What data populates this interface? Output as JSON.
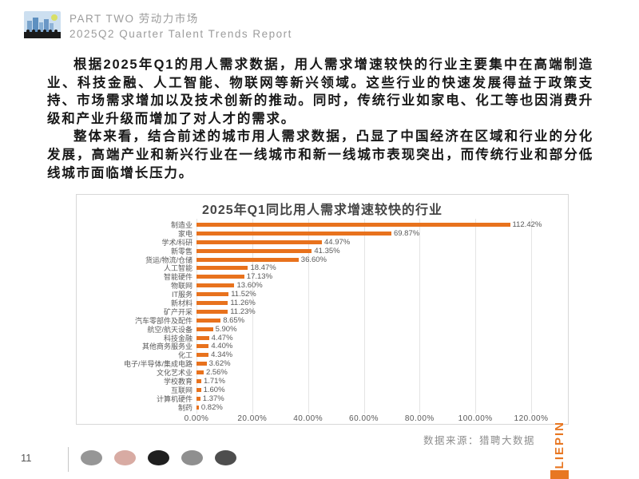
{
  "header": {
    "line1": "PART TWO 劳动力市场",
    "line2": "2025Q2 Quarter Talent Trends Report",
    "icon": "city-skyline-people-logo"
  },
  "paragraphs": [
    "根据2025年Q1的用人需求数据，用人需求增速较快的行业主要集中在高端制造业、科技金融、人工智能、物联网等新兴领域。这些行业的快速发展得益于政策支持、市场需求增加以及技术创新的推动。同时，传统行业如家电、化工等也因消费升级和产业升级而增加了对人才的需求。",
    "整体来看，结合前述的城市用人需求数据，凸显了中国经济在区域和行业的分化发展，高端产业和新兴行业在一线城市和新一线城市表现突出，而传统行业和部分低线城市面临增长压力。"
  ],
  "chart_data": {
    "type": "bar",
    "orientation": "horizontal",
    "title": "2025年Q1同比用人需求增速较快的行业",
    "categories": [
      "制造业",
      "家电",
      "学术/科研",
      "新零售",
      "货运/物流/仓储",
      "人工智能",
      "智能硬件",
      "物联网",
      "IT服务",
      "新材料",
      "矿产开采",
      "汽车零部件及配件",
      "航空/航天设备",
      "科技金融",
      "其他商务服务业",
      "化工",
      "电子/半导体/集成电路",
      "文化艺术业",
      "学校教育",
      "互联网",
      "计算机硬件",
      "制药"
    ],
    "values": [
      112.42,
      69.87,
      44.97,
      41.35,
      36.6,
      18.47,
      17.13,
      13.6,
      11.52,
      11.26,
      11.23,
      8.65,
      5.9,
      4.47,
      4.4,
      4.34,
      3.62,
      2.56,
      1.71,
      1.6,
      1.37,
      0.82
    ],
    "value_labels": [
      "112.42%",
      "69.87%",
      "44.97%",
      "41.35%",
      "36.60%",
      "18.47%",
      "17.13%",
      "13.60%",
      "11.52%",
      "11.26%",
      "11.23%",
      "8.65%",
      "5.90%",
      "4.47%",
      "4.40%",
      "4.34%",
      "3.62%",
      "2.56%",
      "1.71%",
      "1.60%",
      "1.37%",
      "0.82%"
    ],
    "x_ticks": [
      "0.00%",
      "20.00%",
      "40.00%",
      "60.00%",
      "80.00%",
      "100.00%",
      "120.00%"
    ],
    "x_tick_values": [
      0,
      20,
      40,
      60,
      80,
      100,
      120
    ],
    "xlim": [
      0,
      120
    ],
    "grid": true,
    "bar_color": "#E8721D",
    "legend": null
  },
  "footer": {
    "source": "数据来源：猎聘大数据",
    "page_number": "11",
    "logo_text": "LIEPIN",
    "logo_color": "#E87722",
    "logos": [
      {
        "name": "social-logo-1",
        "color": "#969696"
      },
      {
        "name": "social-logo-2",
        "color": "#d8aba3"
      },
      {
        "name": "social-logo-3",
        "color": "#1f1f1f"
      },
      {
        "name": "social-logo-4",
        "color": "#8f8f8f"
      },
      {
        "name": "social-logo-5",
        "color": "#4e4e4e"
      }
    ]
  },
  "colors": {
    "accent_orange": "#E8721D",
    "header_gray": "#9c9c9c",
    "grid_gray": "#e4e4e4",
    "label_gray": "#595959"
  }
}
